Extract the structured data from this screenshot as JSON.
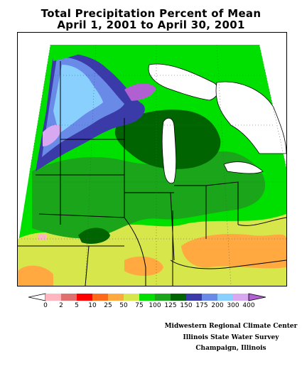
{
  "title": {
    "line1": "Total Precipitation Percent of Mean",
    "line2": "April 1, 2001 to April 30, 2001"
  },
  "legend": {
    "ticks": [
      "0",
      "2",
      "5",
      "10",
      "25",
      "50",
      "75",
      "100",
      "125",
      "150",
      "175",
      "200",
      "300",
      "400"
    ],
    "colors": [
      "#ffffff",
      "#ffb6c1",
      "#e07070",
      "#ff0000",
      "#ff6a1a",
      "#ffa940",
      "#d7e64a",
      "#00e000",
      "#1aa51a",
      "#006400",
      "#3a3aa8",
      "#6a8ae8",
      "#8ad0ff",
      "#d8a8f0",
      "#b060d0"
    ]
  },
  "credits": {
    "line1": "Midwestern Regional Climate Center",
    "line2": "Illinois State Water Survey",
    "line3": "Champaign, Illinois"
  }
}
